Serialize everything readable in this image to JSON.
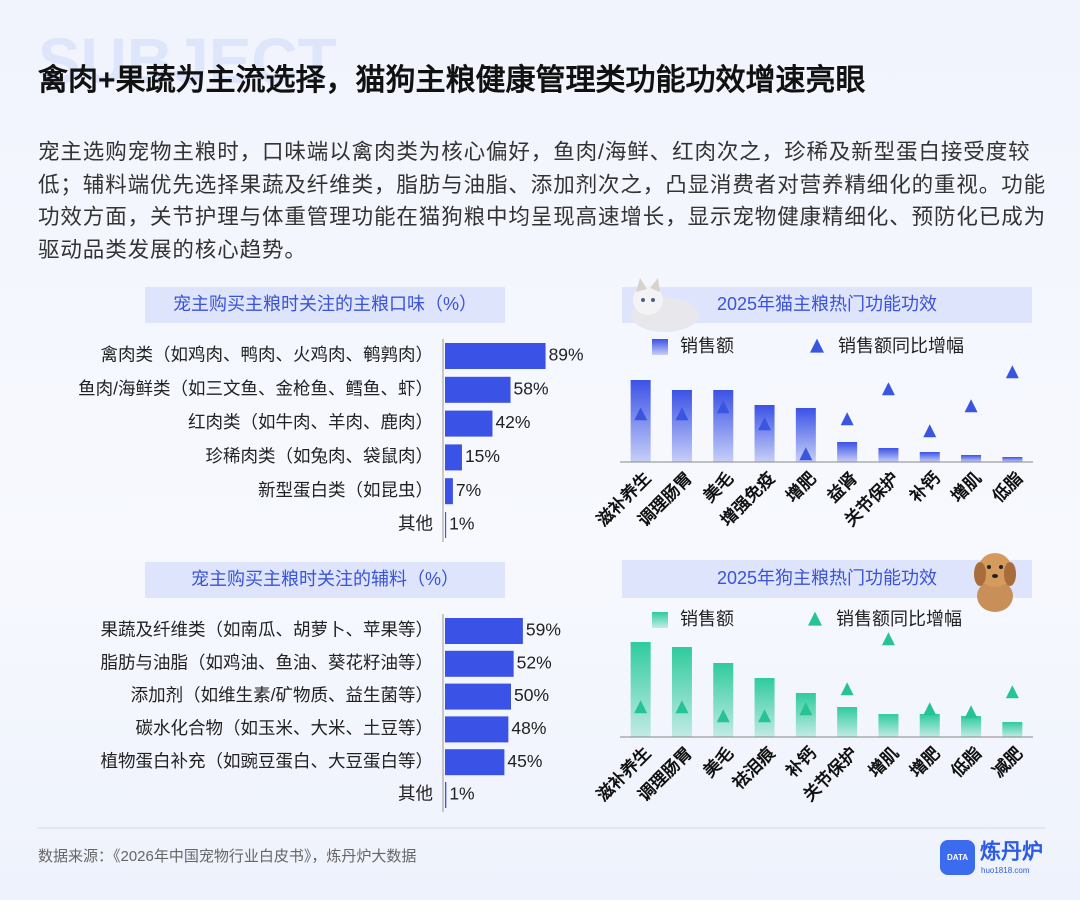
{
  "header": {
    "watermark": "SUBJECT",
    "title": "禽肉+果蔬为主流选择，猫狗主粮健康管理类功能功效增速亮眼",
    "body": "宠主选购宠物主粮时，口味端以禽肉类为核心偏好，鱼肉/海鲜、红肉次之，珍稀及新型蛋白接受度较低；辅料端优先选择果蔬及纤维类，脂肪与油脂、添加剂次之，凸显消费者对营养精细化的重视。功能功效方面，关节护理与体重管理功能在猫狗粮中均呈现高速增长，显示宠物健康精细化、预防化已成为驱动品类发展的核心趋势。"
  },
  "chart_data": [
    {
      "type": "barh",
      "title": "宠主购买主粮时关注的主粮口味（%）",
      "color": "#3b52e6",
      "categories": [
        "禽肉类（如鸡肉、鸭肉、火鸡肉、鹌鹑肉）",
        "鱼肉/海鲜类（如三文鱼、金枪鱼、鳕鱼、虾）",
        "红肉类（如牛肉、羊肉、鹿肉）",
        "珍稀肉类（如兔肉、袋鼠肉）",
        "新型蛋白类（如昆虫）",
        "其他"
      ],
      "values": [
        89,
        58,
        42,
        15,
        7,
        1
      ],
      "value_labels": [
        "89%",
        "58%",
        "42%",
        "15%",
        "7%",
        "1%"
      ]
    },
    {
      "type": "barh",
      "title": "宠主购买主粮时关注的辅料（%）",
      "color": "#3b52e6",
      "categories": [
        "果蔬及纤维类（如南瓜、胡萝卜、苹果等）",
        "脂肪与油脂（如鸡油、鱼油、葵花籽油等）",
        "添加剂（如维生素/矿物质、益生菌等）",
        "碳水化合物（如玉米、大米、土豆等）",
        "植物蛋白补充（如豌豆蛋白、大豆蛋白等）",
        "其他"
      ],
      "values": [
        59,
        52,
        50,
        48,
        45,
        1
      ],
      "value_labels": [
        "59%",
        "52%",
        "50%",
        "48%",
        "45%",
        "1%"
      ]
    },
    {
      "type": "combo",
      "title": "2025年猫主粮热门功能功效",
      "categories": [
        "滋补养生",
        "调理肠胃",
        "美毛",
        "增强免疫",
        "增肥",
        "益肾",
        "关节保护",
        "补钙",
        "增肌",
        "低脂"
      ],
      "series": [
        {
          "name": "销售额",
          "color": "#3b52e6",
          "mark": "bar",
          "values": [
            82,
            72,
            72,
            57,
            54,
            20,
            14,
            10,
            7,
            5
          ]
        },
        {
          "name": "销售额同比增幅",
          "color": "#3a56e0",
          "mark": "triangle",
          "values": [
            47,
            47,
            54,
            37,
            7,
            42,
            72,
            30,
            55,
            89
          ]
        }
      ]
    },
    {
      "type": "combo",
      "title": "2025年狗主粮热门功能功效",
      "categories": [
        "滋补养生",
        "调理肠胃",
        "美毛",
        "祛泪痕",
        "补钙",
        "关节保护",
        "增肌",
        "增肥",
        "低脂",
        "减肥"
      ],
      "series": [
        {
          "name": "销售额",
          "color": "#2fcb9d",
          "mark": "bar",
          "values": [
            95,
            90,
            74,
            59,
            44,
            30,
            23,
            23,
            21,
            15
          ]
        },
        {
          "name": "销售额同比增幅",
          "color": "#26c495",
          "mark": "triangle",
          "values": [
            29,
            29,
            20,
            20,
            27,
            47,
            97,
            27,
            24,
            44
          ]
        }
      ]
    }
  ],
  "footer": {
    "source": "数据来源：《2026年中国宠物行业白皮书》，炼丹炉大数据",
    "brand": "炼丹炉",
    "url": "huo1818.com",
    "logo": "DATA"
  }
}
